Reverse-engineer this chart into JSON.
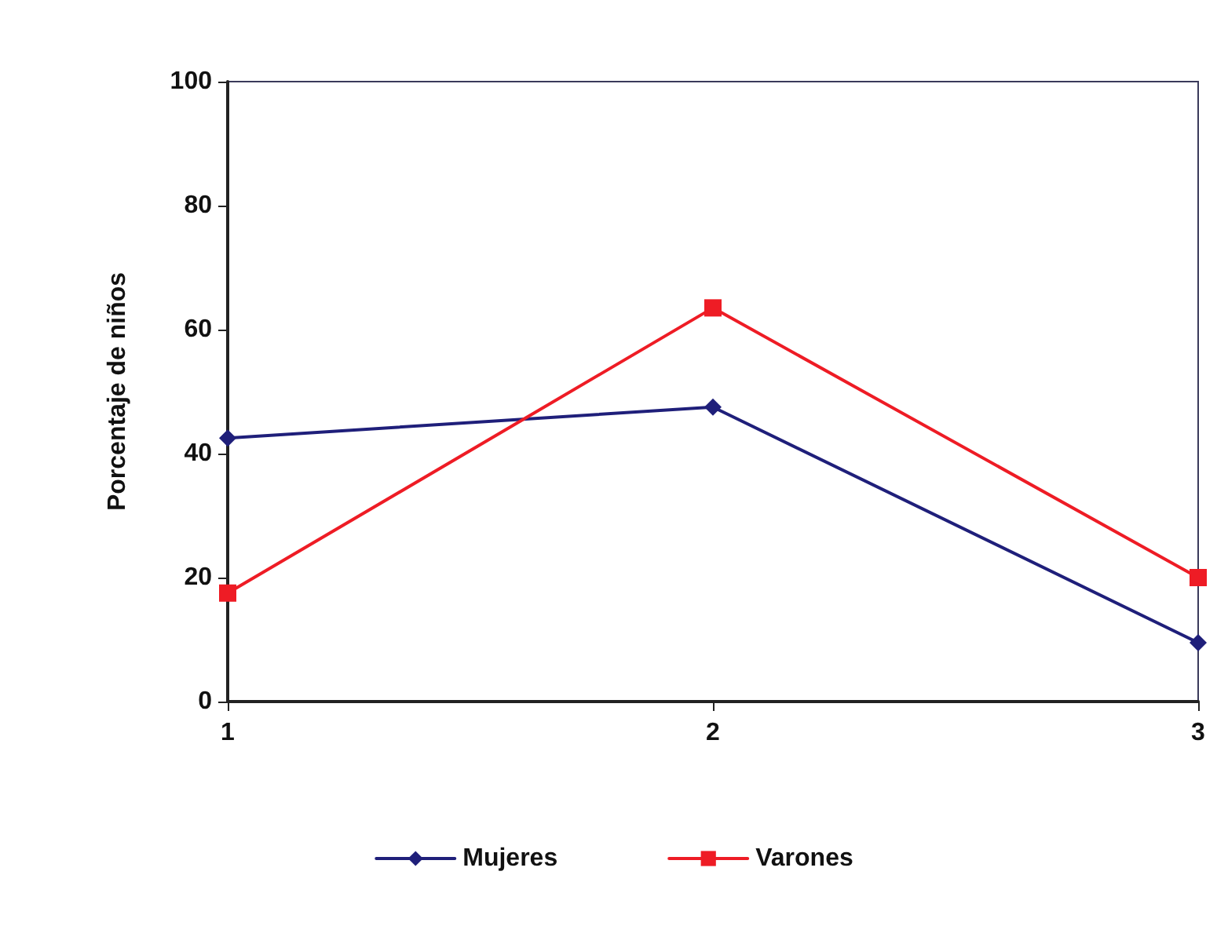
{
  "chart_data": {
    "type": "line",
    "ylabel": "Porcentaje de niños",
    "x": [
      1,
      2,
      3
    ],
    "xlim": [
      1,
      3
    ],
    "xticks": [
      1,
      2,
      3
    ],
    "ylim": [
      0,
      100
    ],
    "yticks": [
      0,
      20,
      40,
      60,
      80,
      100
    ],
    "grid": false,
    "legend": "bottom",
    "line_style": "solid",
    "series": [
      {
        "name": "Mujeres",
        "color": "#1f1f7a",
        "marker": "diamond",
        "values": [
          42.5,
          47.5,
          9.5
        ]
      },
      {
        "name": "Varones",
        "color": "#ee1c25",
        "marker": "square",
        "values": [
          17.5,
          63.5,
          20
        ]
      }
    ]
  }
}
